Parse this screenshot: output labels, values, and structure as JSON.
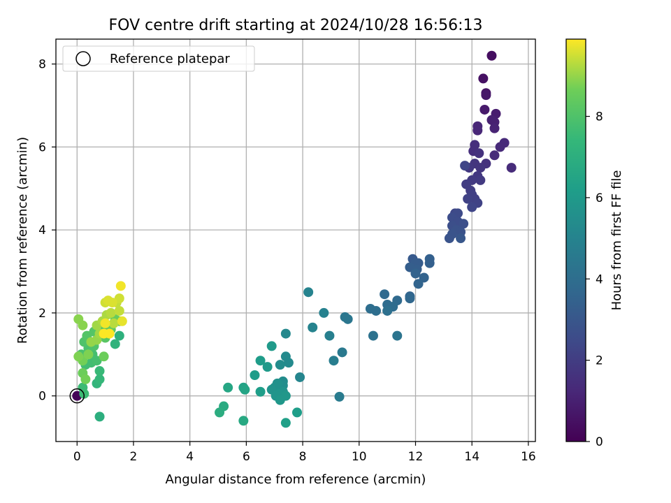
{
  "chart_data": {
    "type": "scatter",
    "title": "FOV centre drift starting at 2024/10/28 16:56:13",
    "xlabel": "Angular distance from reference (arcmin)",
    "ylabel": "Rotation from reference (arcmin)",
    "xlim": [
      -0.75,
      16.25
    ],
    "ylim": [
      -1.1,
      8.6
    ],
    "xticks": [
      0,
      2,
      4,
      6,
      8,
      10,
      12,
      14,
      16
    ],
    "yticks": [
      0,
      2,
      4,
      6,
      8
    ],
    "grid": true,
    "legend": {
      "location": "upper-left",
      "entries": [
        "Reference platepar"
      ]
    },
    "reference_point": {
      "x": 0,
      "y": 0,
      "marker": "open-circle"
    },
    "colorbar": {
      "label": "Hours from first FF file",
      "ticks": [
        0,
        2,
        4,
        6,
        8
      ],
      "range": [
        0,
        9.9
      ],
      "colormap": "viridis"
    },
    "columns": [
      "x",
      "y",
      "hours"
    ],
    "points": [
      [
        0.0,
        0.0,
        0.1
      ],
      [
        14.7,
        8.2,
        0.4
      ],
      [
        14.4,
        7.65,
        0.5
      ],
      [
        14.5,
        7.3,
        0.6
      ],
      [
        14.5,
        7.25,
        0.7
      ],
      [
        14.45,
        6.9,
        0.8
      ],
      [
        14.85,
        6.8,
        0.9
      ],
      [
        14.7,
        6.65,
        1.0
      ],
      [
        14.8,
        6.6,
        1.0
      ],
      [
        14.8,
        6.45,
        1.1
      ],
      [
        14.2,
        6.5,
        1.2
      ],
      [
        14.2,
        6.4,
        1.2
      ],
      [
        15.15,
        6.1,
        1.3
      ],
      [
        15.0,
        6.0,
        1.3
      ],
      [
        15.4,
        5.5,
        1.4
      ],
      [
        14.8,
        5.8,
        1.4
      ],
      [
        14.1,
        6.05,
        1.5
      ],
      [
        14.05,
        5.9,
        1.5
      ],
      [
        14.25,
        5.85,
        1.6
      ],
      [
        14.5,
        5.6,
        1.6
      ],
      [
        14.1,
        5.6,
        1.7
      ],
      [
        14.3,
        5.5,
        1.7
      ],
      [
        13.9,
        5.5,
        1.8
      ],
      [
        14.2,
        5.3,
        1.8
      ],
      [
        14.3,
        5.2,
        1.9
      ],
      [
        14.0,
        5.2,
        1.9
      ],
      [
        13.8,
        5.1,
        2.0
      ],
      [
        13.95,
        4.95,
        2.0
      ],
      [
        14.0,
        4.85,
        2.1
      ],
      [
        14.1,
        4.75,
        2.1
      ],
      [
        13.85,
        4.75,
        2.2
      ],
      [
        14.2,
        4.65,
        2.2
      ],
      [
        14.0,
        4.55,
        2.3
      ],
      [
        13.75,
        5.55,
        2.3
      ],
      [
        13.4,
        4.4,
        2.4
      ],
      [
        13.5,
        4.4,
        2.5
      ],
      [
        13.3,
        4.3,
        2.6
      ],
      [
        13.5,
        4.2,
        2.6
      ],
      [
        13.7,
        4.15,
        2.7
      ],
      [
        13.3,
        4.1,
        2.7
      ],
      [
        13.45,
        4.0,
        2.8
      ],
      [
        13.6,
        3.95,
        2.8
      ],
      [
        13.3,
        3.9,
        2.9
      ],
      [
        13.2,
        3.8,
        2.9
      ],
      [
        13.6,
        3.8,
        3.0
      ],
      [
        11.9,
        3.3,
        3.1
      ],
      [
        12.0,
        3.2,
        3.2
      ],
      [
        12.1,
        3.2,
        3.2
      ],
      [
        11.8,
        3.1,
        3.3
      ],
      [
        12.05,
        3.05,
        3.3
      ],
      [
        12.5,
        3.3,
        3.4
      ],
      [
        12.5,
        3.2,
        3.4
      ],
      [
        12.0,
        2.95,
        3.5
      ],
      [
        12.3,
        2.85,
        3.5
      ],
      [
        12.1,
        2.7,
        3.6
      ],
      [
        11.8,
        2.4,
        3.6
      ],
      [
        11.8,
        2.35,
        3.7
      ],
      [
        10.9,
        2.45,
        3.8
      ],
      [
        11.35,
        2.3,
        3.8
      ],
      [
        11.0,
        2.2,
        3.9
      ],
      [
        11.2,
        2.15,
        3.9
      ],
      [
        10.4,
        2.1,
        4.0
      ],
      [
        10.6,
        2.05,
        4.0
      ],
      [
        11.0,
        2.05,
        4.1
      ],
      [
        10.5,
        1.45,
        4.2
      ],
      [
        11.35,
        1.45,
        4.3
      ],
      [
        9.5,
        1.9,
        4.4
      ],
      [
        9.6,
        1.85,
        4.4
      ],
      [
        9.4,
        1.05,
        4.5
      ],
      [
        9.3,
        -0.02,
        4.6
      ],
      [
        9.1,
        0.85,
        4.7
      ],
      [
        8.95,
        1.45,
        4.8
      ],
      [
        8.75,
        2.0,
        4.9
      ],
      [
        8.35,
        1.65,
        5.0
      ],
      [
        8.2,
        2.5,
        5.0
      ],
      [
        7.9,
        0.45,
        5.1
      ],
      [
        7.4,
        1.5,
        5.2
      ],
      [
        7.4,
        0.95,
        5.3
      ],
      [
        7.5,
        0.8,
        5.3
      ],
      [
        7.2,
        0.75,
        5.4
      ],
      [
        7.3,
        0.35,
        5.4
      ],
      [
        7.3,
        0.25,
        5.5
      ],
      [
        7.2,
        0.15,
        5.5
      ],
      [
        7.0,
        0.2,
        5.6
      ],
      [
        7.1,
        0.3,
        5.6
      ],
      [
        6.9,
        0.15,
        5.7
      ],
      [
        7.3,
        0.1,
        5.7
      ],
      [
        7.15,
        0.05,
        5.8
      ],
      [
        7.05,
        0.0,
        5.8
      ],
      [
        7.4,
        0.0,
        5.9
      ],
      [
        7.2,
        -0.1,
        5.9
      ],
      [
        6.9,
        1.2,
        6.0
      ],
      [
        6.75,
        0.7,
        6.0
      ],
      [
        6.5,
        0.85,
        6.1
      ],
      [
        6.3,
        0.5,
        6.1
      ],
      [
        6.5,
        0.1,
        6.2
      ],
      [
        7.8,
        -0.4,
        6.2
      ],
      [
        7.4,
        -0.65,
        6.3
      ],
      [
        5.9,
        0.2,
        6.4
      ],
      [
        5.95,
        0.15,
        6.5
      ],
      [
        5.35,
        0.2,
        6.6
      ],
      [
        5.9,
        -0.6,
        6.7
      ],
      [
        5.2,
        -0.25,
        6.8
      ],
      [
        5.05,
        -0.4,
        6.9
      ],
      [
        0.8,
        -0.5,
        7.0
      ],
      [
        1.5,
        1.45,
        7.1
      ],
      [
        1.35,
        1.25,
        7.2
      ],
      [
        0.7,
        0.3,
        7.3
      ],
      [
        0.8,
        0.4,
        7.4
      ],
      [
        0.8,
        0.6,
        7.5
      ],
      [
        0.25,
        0.05,
        7.6
      ],
      [
        0.2,
        0.2,
        7.6
      ],
      [
        0.3,
        0.75,
        7.7
      ],
      [
        0.5,
        0.8,
        7.7
      ],
      [
        0.7,
        0.85,
        7.8
      ],
      [
        0.55,
        1.0,
        7.8
      ],
      [
        0.15,
        1.0,
        7.9
      ],
      [
        0.4,
        1.15,
        7.9
      ],
      [
        0.6,
        1.2,
        8.0
      ],
      [
        0.25,
        1.3,
        8.0
      ],
      [
        0.35,
        1.45,
        8.1
      ],
      [
        0.6,
        1.55,
        8.1
      ],
      [
        0.85,
        1.5,
        8.2
      ],
      [
        1.0,
        1.4,
        8.2
      ],
      [
        1.0,
        1.65,
        8.3
      ],
      [
        1.2,
        1.6,
        8.3
      ],
      [
        1.5,
        1.8,
        8.4
      ],
      [
        1.35,
        1.85,
        8.5
      ],
      [
        1.2,
        1.7,
        8.5
      ],
      [
        0.95,
        0.95,
        8.6
      ],
      [
        0.2,
        0.55,
        8.6
      ],
      [
        0.3,
        0.4,
        8.7
      ],
      [
        0.2,
        0.85,
        8.7
      ],
      [
        0.05,
        0.95,
        8.8
      ],
      [
        0.4,
        1.0,
        8.8
      ],
      [
        0.2,
        1.7,
        8.9
      ],
      [
        0.05,
        1.85,
        8.9
      ],
      [
        0.5,
        1.3,
        9.0
      ],
      [
        0.7,
        1.35,
        9.0
      ],
      [
        0.8,
        1.5,
        9.1
      ],
      [
        0.7,
        1.7,
        9.1
      ],
      [
        0.9,
        1.8,
        9.2
      ],
      [
        1.05,
        1.95,
        9.2
      ],
      [
        1.2,
        2.0,
        9.3
      ],
      [
        1.3,
        1.75,
        9.3
      ],
      [
        1.5,
        2.05,
        9.4
      ],
      [
        1.4,
        2.25,
        9.4
      ],
      [
        1.5,
        2.35,
        9.5
      ],
      [
        1.0,
        2.25,
        9.5
      ],
      [
        1.1,
        2.3,
        9.6
      ],
      [
        1.25,
        2.25,
        9.6
      ],
      [
        1.6,
        1.8,
        9.7
      ],
      [
        1.55,
        2.65,
        9.8
      ],
      [
        1.0,
        1.75,
        9.8
      ],
      [
        0.95,
        1.5,
        9.9
      ],
      [
        1.15,
        1.5,
        9.9
      ]
    ]
  }
}
